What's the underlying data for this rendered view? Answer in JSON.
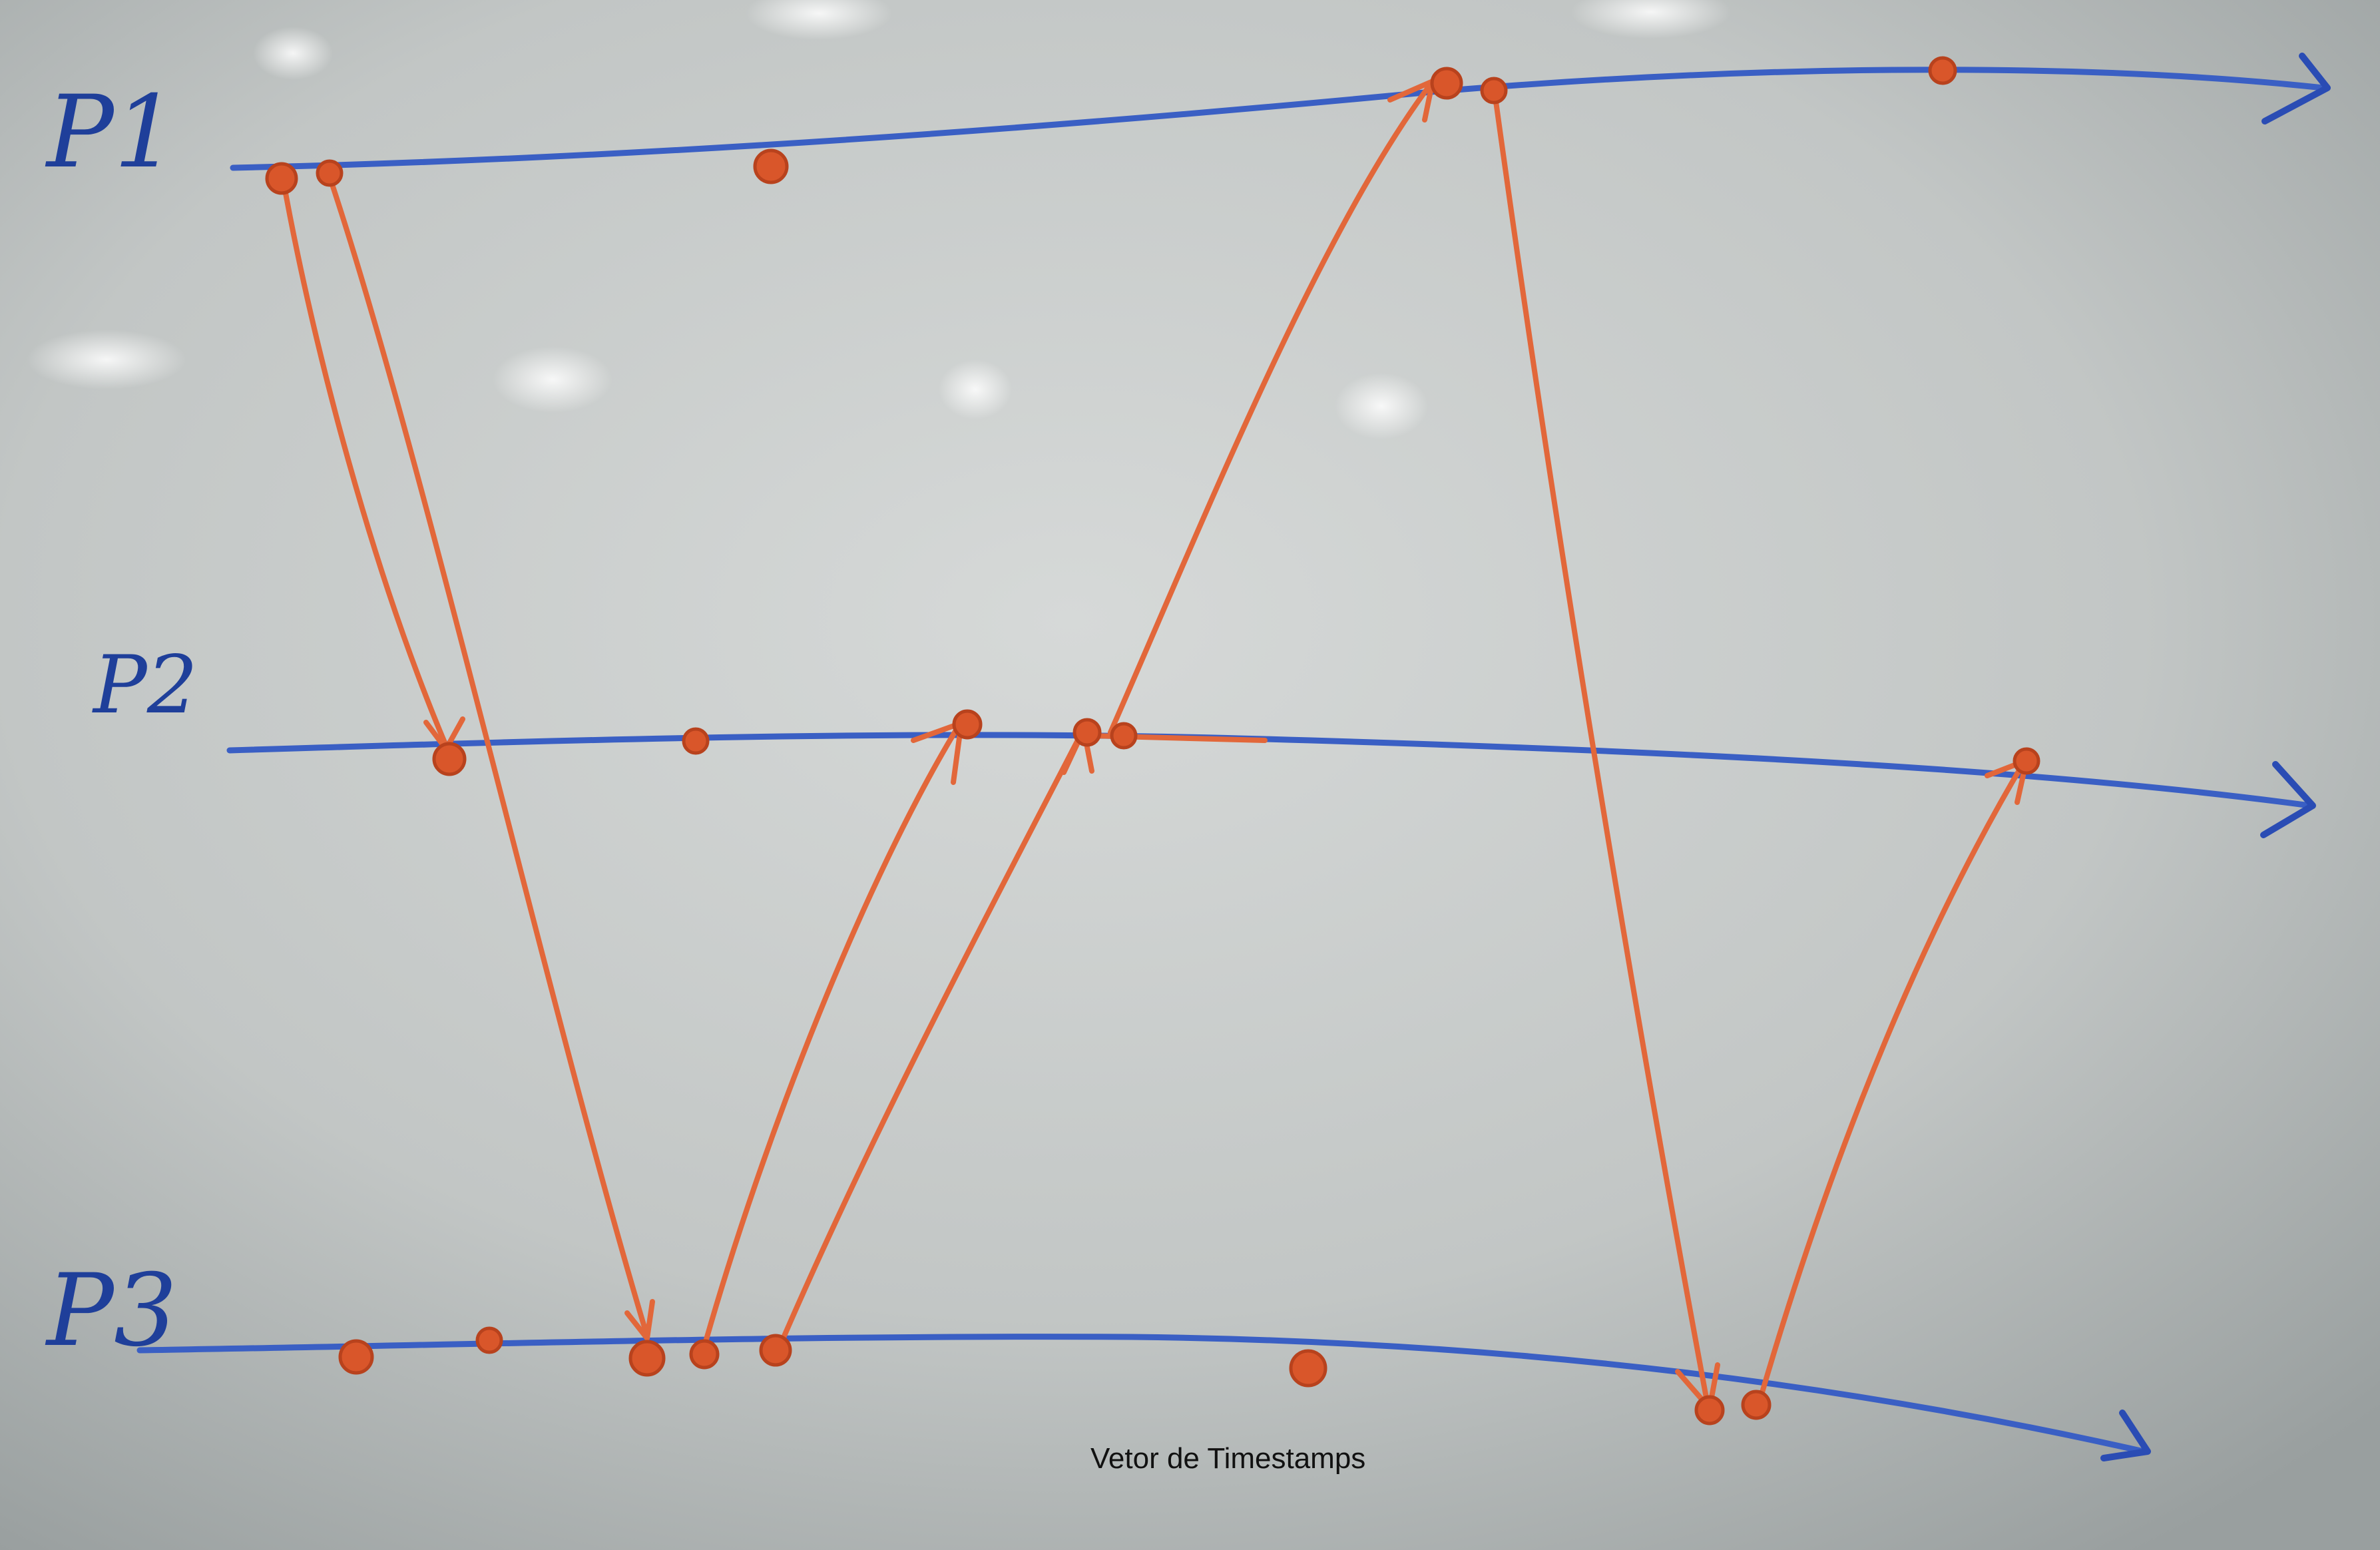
{
  "caption": "Vetor de Timestamps",
  "processes": [
    {
      "id": "p1",
      "label": "P1"
    },
    {
      "id": "p2",
      "label": "P2"
    },
    {
      "id": "p3",
      "label": "P3"
    }
  ],
  "colors": {
    "timeline": "#3a5fc4",
    "message": "#e2673a",
    "event": "#d9562a",
    "label": "#1f3f9a",
    "board_center": "#d4d7d6",
    "board_edge": "#9aa0a0"
  },
  "events": {
    "p1": 6,
    "p2": 6,
    "p3": 8
  },
  "messages": [
    {
      "from": "p1",
      "from_event": 1,
      "to": "p2",
      "to_event": 1
    },
    {
      "from": "p1",
      "from_event": 2,
      "to": "p3",
      "to_event": 3
    },
    {
      "from": "p3",
      "from_event": 4,
      "to": "p2",
      "to_event": 3
    },
    {
      "from": "p3",
      "from_event": 5,
      "to": "p2",
      "to_event": 4
    },
    {
      "from": "p2",
      "from_event": 5,
      "to": "p1",
      "to_event": 4
    },
    {
      "from": "p1",
      "from_event": 5,
      "to": "p3",
      "to_event": 7
    },
    {
      "from": "p3",
      "from_event": 8,
      "to": "p2",
      "to_event": 6
    }
  ]
}
